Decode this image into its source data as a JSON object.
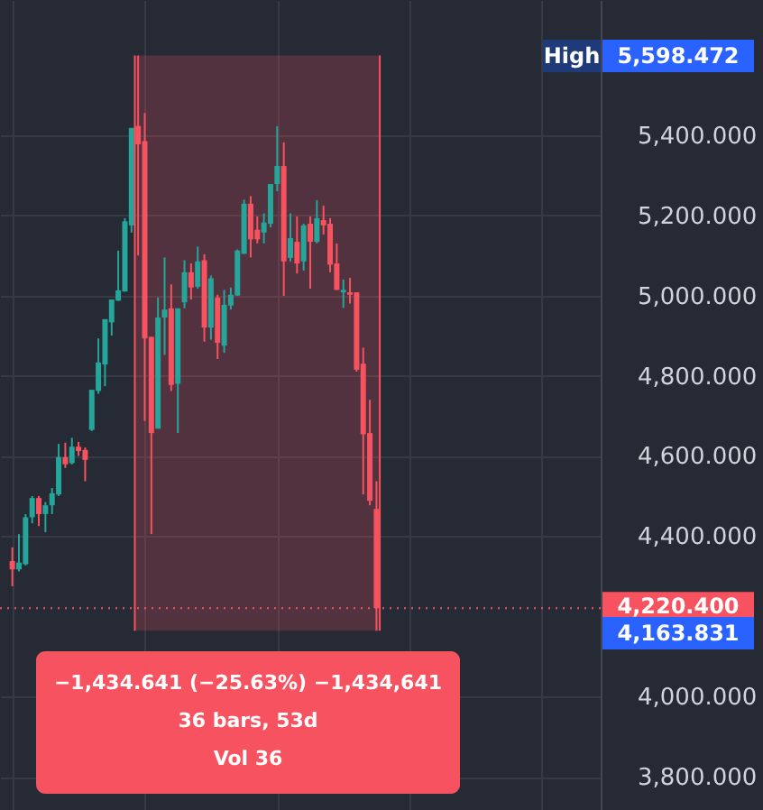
{
  "chart_data": {
    "type": "candlestick",
    "categories": [
      null,
      null,
      null,
      null,
      null,
      null,
      null,
      null,
      null,
      null,
      null,
      null,
      null,
      null,
      null,
      null,
      null,
      null,
      null,
      null,
      null,
      null,
      null,
      null,
      null,
      null,
      null,
      null,
      null,
      null,
      null,
      null,
      null,
      null,
      null,
      null,
      null,
      null,
      null,
      null,
      null,
      null,
      null,
      null,
      null,
      null,
      null,
      null,
      null,
      null,
      null,
      null,
      null,
      null,
      null,
      null,
      null,
      null,
      null,
      null,
      null,
      null,
      null,
      null,
      null,
      null,
      null,
      null,
      null,
      null,
      null,
      null,
      null,
      null,
      null,
      null,
      null,
      null,
      null,
      null,
      null,
      null,
      null,
      null,
      null,
      null,
      null,
      null
    ],
    "ohlc": [
      [
        4338,
        4372,
        4275,
        4317
      ],
      [
        4317,
        4405,
        4312,
        4334
      ],
      [
        4330,
        4455,
        4327,
        4447
      ],
      [
        4447,
        4500,
        4432,
        4495
      ],
      [
        4495,
        4500,
        4425,
        4455
      ],
      [
        4455,
        4485,
        4410,
        4477
      ],
      [
        4477,
        4520,
        4455,
        4507
      ],
      [
        4504,
        4630,
        4500,
        4597
      ],
      [
        4597,
        4633,
        4570,
        4579
      ],
      [
        4582,
        4645,
        4579,
        4623
      ],
      [
        4623,
        4635,
        4600,
        4612
      ],
      [
        4615,
        4621,
        4537,
        4590
      ],
      [
        4665,
        4765,
        4662,
        4765
      ],
      [
        4762,
        4893,
        4755,
        4833
      ],
      [
        4828,
        4941,
        4774,
        4941
      ],
      [
        4933,
        4990,
        4900,
        4990
      ],
      [
        4987,
        5112,
        4987,
        5013
      ],
      [
        5010,
        5193,
        5010,
        5185
      ],
      [
        5175,
        5418,
        5157,
        5418
      ],
      [
        5423,
        5598.472,
        5100,
        5377
      ],
      [
        5385,
        5455,
        4687,
        4893
      ],
      [
        4897,
        4897,
        4405,
        4657
      ],
      [
        4668,
        4995,
        4668,
        4945
      ],
      [
        4945,
        5095,
        4852,
        4965
      ],
      [
        4968,
        5028,
        4762,
        4777
      ],
      [
        4780,
        4968,
        4657,
        4968
      ],
      [
        4983,
        5088,
        4968,
        5058
      ],
      [
        5058,
        5080,
        4990,
        5020
      ],
      [
        5022,
        5122,
        5017,
        5085
      ],
      [
        5088,
        5103,
        4885,
        4920
      ],
      [
        4920,
        5050,
        4890,
        5043
      ],
      [
        4995,
        5002,
        4842,
        4882
      ],
      [
        4875,
        5014,
        4857,
        4977
      ],
      [
        4975,
        5020,
        4965,
        5002
      ],
      [
        5000,
        5115,
        5000,
        5112
      ],
      [
        5104,
        5239,
        5104,
        5229
      ],
      [
        5229,
        5248,
        5095,
        5140
      ],
      [
        5164,
        5197,
        5130,
        5140
      ],
      [
        5157,
        5205,
        5130,
        5182
      ],
      [
        5179,
        5278,
        5170,
        5278
      ],
      [
        5278,
        5422,
        5260,
        5323
      ],
      [
        5323,
        5382,
        4999,
        5085
      ],
      [
        5094,
        5205,
        5085,
        5143
      ],
      [
        5134,
        5197,
        5055,
        5080
      ],
      [
        5085,
        5179,
        5062,
        5175
      ],
      [
        5179,
        5197,
        5017,
        5134
      ],
      [
        5134,
        5238,
        5130,
        5193
      ],
      [
        5188,
        5224,
        5152,
        5175
      ],
      [
        5179,
        5193,
        5058,
        5077
      ],
      [
        5080,
        5130,
        5014,
        5014
      ],
      [
        5008,
        5040,
        4969,
        5014
      ],
      [
        5008,
        5044,
        4980,
        5002
      ],
      [
        5008,
        5008,
        4810,
        4815
      ],
      [
        4830,
        4870,
        4504,
        4654
      ],
      [
        4657,
        4740,
        4477,
        4488
      ],
      [
        4468,
        4537,
        4163.831,
        4220.4
      ],
      null,
      null,
      null,
      null,
      null,
      null,
      null,
      null,
      null,
      null,
      null,
      null,
      null,
      null,
      null,
      null,
      null,
      null,
      null,
      null,
      null,
      null,
      null,
      null,
      null,
      null,
      null,
      null,
      null,
      null,
      null,
      null
    ],
    "colors": [
      "#f7525f",
      "#26a69a",
      "#26a69a",
      "#26a69a",
      "#f7525f",
      "#26a69a",
      "#26a69a",
      "#26a69a",
      "#f7525f",
      "#26a69a",
      "#f7525f",
      "#f7525f",
      "#26a69a",
      "#26a69a",
      "#26a69a",
      "#26a69a",
      "#26a69a",
      "#26a69a",
      "#26a69a",
      "#f7525f",
      "#f7525f",
      "#f7525f",
      "#26a69a",
      "#26a69a",
      "#f7525f",
      "#26a69a",
      "#26a69a",
      "#f7525f",
      "#26a69a",
      "#f7525f",
      "#26a69a",
      "#f7525f",
      "#26a69a",
      "#26a69a",
      "#26a69a",
      "#26a69a",
      "#f7525f",
      "#f7525f",
      "#26a69a",
      "#26a69a",
      "#26a69a",
      "#f7525f",
      "#26a69a",
      "#f7525f",
      "#26a69a",
      "#f7525f",
      "#26a69a",
      "#f7525f",
      "#f7525f",
      "#f7525f",
      "#26a69a",
      "#f7525f",
      "#f7525f",
      "#f7525f",
      "#f7525f",
      "#f7525f",
      null,
      null,
      null,
      null,
      null,
      null,
      null,
      null,
      null,
      null,
      null,
      null,
      null,
      null,
      null,
      null,
      null,
      null,
      null,
      null,
      null,
      null,
      null,
      null,
      null,
      null,
      null,
      null,
      null,
      null,
      null,
      null
    ],
    "ylim": [
      3717,
      5737
    ],
    "yticks": [
      {
        "value": 3800,
        "label": "3,800.000"
      },
      {
        "value": 4000,
        "label": "4,000.000"
      },
      {
        "value": 4400,
        "label": "4,400.000"
      },
      {
        "value": 4600,
        "label": "4,600.000"
      },
      {
        "value": 4800,
        "label": "4,800.000"
      },
      {
        "value": 5000,
        "label": "5,000.000"
      },
      {
        "value": 5200,
        "label": "5,200.000"
      },
      {
        "value": 5400,
        "label": "5,400.000"
      }
    ],
    "grid": true,
    "ref_lines": [
      {
        "axis": "y",
        "value": 4220.4,
        "label": "4,220.400",
        "color": "#f7525f",
        "line_style": "dotted"
      }
    ],
    "bands": [
      {
        "axis": "y",
        "from": 4163.831,
        "to": 5598.472,
        "color": "#f7525f"
      }
    ],
    "annotations": [
      "High",
      "5,598.472",
      "4,163.831",
      "−1,434.641 (−25.63%) −1,434,641",
      "36 bars, 53d",
      "Vol 36"
    ]
  }
}
